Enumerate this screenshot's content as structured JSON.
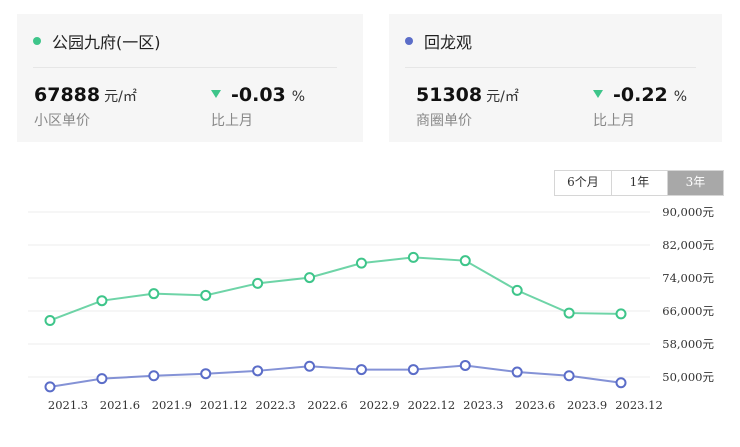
{
  "cards": [
    {
      "name": "公园九府(一区)",
      "dot_color": "#3ec58a",
      "price": "67888",
      "price_unit": "元/㎡",
      "price_label": "小区单价",
      "change": "-0.03",
      "change_unit": "%",
      "change_label": "比上月",
      "trend_icon": "triangle-down-icon"
    },
    {
      "name": "回龙观",
      "dot_color": "#5b6dc8",
      "price": "51308",
      "price_unit": "元/㎡",
      "price_label": "商圈单价",
      "change": "-0.22",
      "change_unit": "%",
      "change_label": "比上月",
      "trend_icon": "triangle-down-icon"
    }
  ],
  "range_tabs": [
    {
      "label": "6个月",
      "active": false
    },
    {
      "label": "1年",
      "active": false
    },
    {
      "label": "3年",
      "active": true
    }
  ],
  "chart_data": {
    "type": "line",
    "categories": [
      "2021.3",
      "2021.6",
      "2021.9",
      "2021.12",
      "2022.3",
      "2022.6",
      "2022.9",
      "2022.12",
      "2023.3",
      "2023.6",
      "2023.9",
      "2023.12"
    ],
    "series": [
      {
        "values": [
          63700,
          68500,
          70200,
          69800,
          72700,
          74100,
          77600,
          79000,
          78200,
          71000,
          65500,
          65300
        ],
        "color": "#3ec58a"
      },
      {
        "values": [
          47600,
          49600,
          50300,
          50800,
          51500,
          52600,
          51800,
          51800,
          52800,
          51200,
          50300,
          48600
        ],
        "color": "#5b6dc8"
      }
    ],
    "y_ticks": [
      "90,000元",
      "82,000元",
      "74,000元",
      "66,000元",
      "58,000元",
      "50,000元"
    ],
    "ylim": [
      42000,
      90000
    ],
    "grid": true,
    "y_axis_side": "right"
  }
}
